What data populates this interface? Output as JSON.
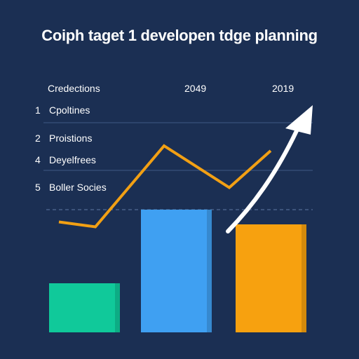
{
  "title": "Coiph taget 1 developen tdge planning",
  "chart_data": {
    "type": "bar",
    "title": "Coiph taget 1 developen tdge planning",
    "table_header": [
      "Credections",
      "2049",
      "2019"
    ],
    "rows": [
      {
        "num": "1",
        "label": "Cpoltines"
      },
      {
        "num": "2",
        "label": "Proistions"
      },
      {
        "num": "4",
        "label": "Deyelfrees"
      },
      {
        "num": "5",
        "label": "Boller Socies"
      }
    ],
    "ylim": [
      0,
      100
    ],
    "bars": [
      {
        "value": 20,
        "color": "#10c99a"
      },
      {
        "value": 50,
        "color": "#3fa0f2"
      },
      {
        "value": 44,
        "color": "#f7a10f"
      }
    ],
    "line": {
      "color": "#f2a014",
      "values": [
        45,
        43,
        76,
        59,
        74
      ]
    },
    "trend_arrow": {
      "color": "#ffffff"
    },
    "reference_line": {
      "value": 50
    }
  }
}
